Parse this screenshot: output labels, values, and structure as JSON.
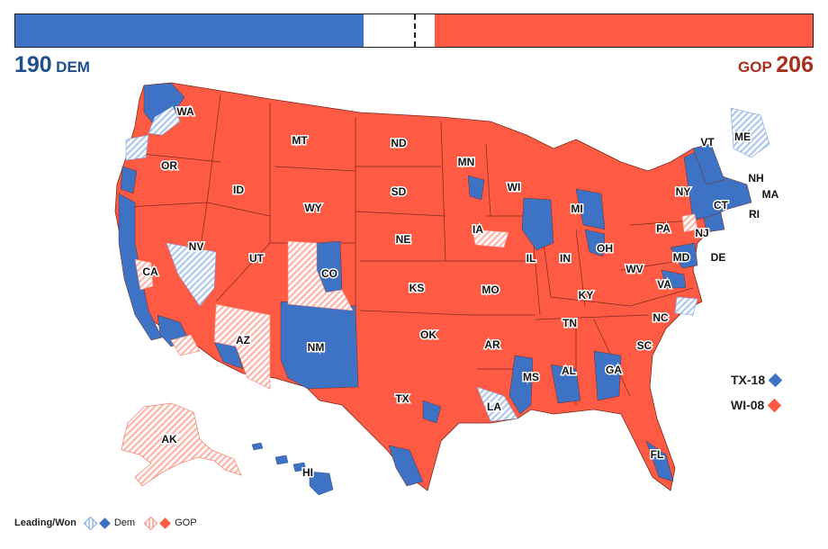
{
  "tally": {
    "dem_count": "190",
    "dem_label": "DEM",
    "gop_count": "206",
    "gop_label": "GOP",
    "total_seats": 435,
    "colors": {
      "dem": "#3d72c4",
      "gop": "#ff5a43"
    }
  },
  "colors": {
    "dem_won": "#3d72c4",
    "dem_leading": "#aec7ec",
    "gop_won": "#ff5a43",
    "gop_leading": "#ffb3a6",
    "border": "#7a2a1e"
  },
  "states": [
    {
      "abbr": "WA"
    },
    {
      "abbr": "OR"
    },
    {
      "abbr": "CA"
    },
    {
      "abbr": "NV"
    },
    {
      "abbr": "ID"
    },
    {
      "abbr": "MT"
    },
    {
      "abbr": "WY"
    },
    {
      "abbr": "UT"
    },
    {
      "abbr": "AZ"
    },
    {
      "abbr": "CO"
    },
    {
      "abbr": "NM"
    },
    {
      "abbr": "ND"
    },
    {
      "abbr": "SD"
    },
    {
      "abbr": "NE"
    },
    {
      "abbr": "KS"
    },
    {
      "abbr": "OK"
    },
    {
      "abbr": "TX"
    },
    {
      "abbr": "MN"
    },
    {
      "abbr": "IA"
    },
    {
      "abbr": "MO"
    },
    {
      "abbr": "AR"
    },
    {
      "abbr": "LA"
    },
    {
      "abbr": "WI"
    },
    {
      "abbr": "IL"
    },
    {
      "abbr": "MI"
    },
    {
      "abbr": "IN"
    },
    {
      "abbr": "OH"
    },
    {
      "abbr": "KY"
    },
    {
      "abbr": "TN"
    },
    {
      "abbr": "MS"
    },
    {
      "abbr": "AL"
    },
    {
      "abbr": "GA"
    },
    {
      "abbr": "FL"
    },
    {
      "abbr": "SC"
    },
    {
      "abbr": "NC"
    },
    {
      "abbr": "VA"
    },
    {
      "abbr": "WV"
    },
    {
      "abbr": "PA"
    },
    {
      "abbr": "NY"
    },
    {
      "abbr": "VT"
    },
    {
      "abbr": "NH"
    },
    {
      "abbr": "ME"
    },
    {
      "abbr": "MA"
    },
    {
      "abbr": "RI"
    },
    {
      "abbr": "CT"
    },
    {
      "abbr": "NJ"
    },
    {
      "abbr": "DE"
    },
    {
      "abbr": "MD"
    },
    {
      "abbr": "AK"
    },
    {
      "abbr": "HI"
    }
  ],
  "callouts": [
    {
      "label": "TX-18",
      "party": "dem"
    },
    {
      "label": "WI-08",
      "party": "gop"
    }
  ],
  "legend": {
    "title": "Leading/Won",
    "dem": "Dem",
    "gop": "GOP"
  }
}
